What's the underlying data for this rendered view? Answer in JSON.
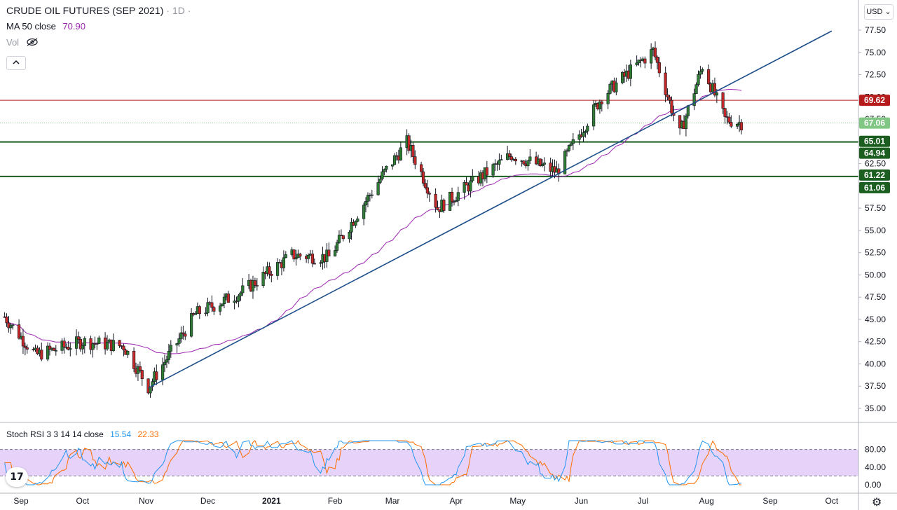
{
  "chart_data": {
    "type": "candlestick",
    "title": "CRUDE OIL FUTURES (SEP 2021)",
    "interval": "1D",
    "currency": "USD",
    "price_axis": {
      "ylim": [
        33.5,
        79.0
      ],
      "ticks": [
        "35.00",
        "37.50",
        "40.00",
        "42.50",
        "45.00",
        "47.50",
        "50.00",
        "52.50",
        "55.00",
        "57.50",
        "60.00",
        "62.50",
        "65.00",
        "67.50",
        "70.00",
        "72.50",
        "75.00",
        "77.50"
      ]
    },
    "time_axis": {
      "labels": [
        "Sep",
        "Oct",
        "Nov",
        "Dec",
        "2021",
        "Feb",
        "Mar",
        "Apr",
        "May",
        "Jun",
        "Jul",
        "Aug",
        "Sep",
        "Oct"
      ]
    },
    "indicators": {
      "ma": {
        "label": "MA 50 close",
        "value": "70.90",
        "color": "#9c27b0"
      },
      "volume": {
        "label": "Vol",
        "hidden": true
      },
      "stoch_rsi": {
        "label": "Stoch RSI 3 3 14 14 close",
        "k": "15.54",
        "d": "22.33",
        "k_color": "#2196f3",
        "d_color": "#ff6d00",
        "upper": 80,
        "lower": 20,
        "ticks": [
          "80.00",
          "40.00",
          "0.00"
        ]
      }
    },
    "horizontal_lines": [
      {
        "price": 69.62,
        "label": "69.62",
        "color": "#b71c1c"
      },
      {
        "price": 65.01,
        "label": "65.01",
        "color": "#1b5e20"
      },
      {
        "price": 64.94,
        "label": "64.94",
        "color": "#1b5e20"
      },
      {
        "price": 61.22,
        "label": "61.22",
        "color": "#1b5e20"
      },
      {
        "price": 61.06,
        "label": "61.06",
        "color": "#1b5e20"
      }
    ],
    "last_price": {
      "price": 67.06,
      "label": "67.06",
      "color": "#81c784"
    },
    "trendline": {
      "from": {
        "date": "2020-11-02",
        "price": 37.3
      },
      "to": {
        "date": "2021-10-01",
        "price": 77.4
      }
    },
    "candle_up_color": "#26a69a",
    "candle_down_color": "#ef5350",
    "key_points": [
      {
        "date": "2020-08-24",
        "price": 45.3
      },
      {
        "date": "2020-09-08",
        "price": 41.0
      },
      {
        "date": "2020-10-01",
        "price": 42.5
      },
      {
        "date": "2020-10-21",
        "price": 42.0
      },
      {
        "date": "2020-11-02",
        "price": 37.4
      },
      {
        "date": "2020-11-25",
        "price": 45.6
      },
      {
        "date": "2020-12-17",
        "price": 48.0
      },
      {
        "date": "2021-01-11",
        "price": 52.2
      },
      {
        "date": "2021-01-29",
        "price": 52.0
      },
      {
        "date": "2021-02-25",
        "price": 61.5
      },
      {
        "date": "2021-03-08",
        "price": 64.9
      },
      {
        "date": "2021-03-23",
        "price": 57.5
      },
      {
        "date": "2021-04-28",
        "price": 63.5
      },
      {
        "date": "2021-05-20",
        "price": 61.6
      },
      {
        "date": "2021-06-11",
        "price": 70.0
      },
      {
        "date": "2021-07-06",
        "price": 75.2
      },
      {
        "date": "2021-07-19",
        "price": 65.8
      },
      {
        "date": "2021-07-30",
        "price": 73.5
      },
      {
        "date": "2021-08-10",
        "price": 67.5
      },
      {
        "date": "2021-08-18",
        "price": 67.06
      }
    ]
  }
}
